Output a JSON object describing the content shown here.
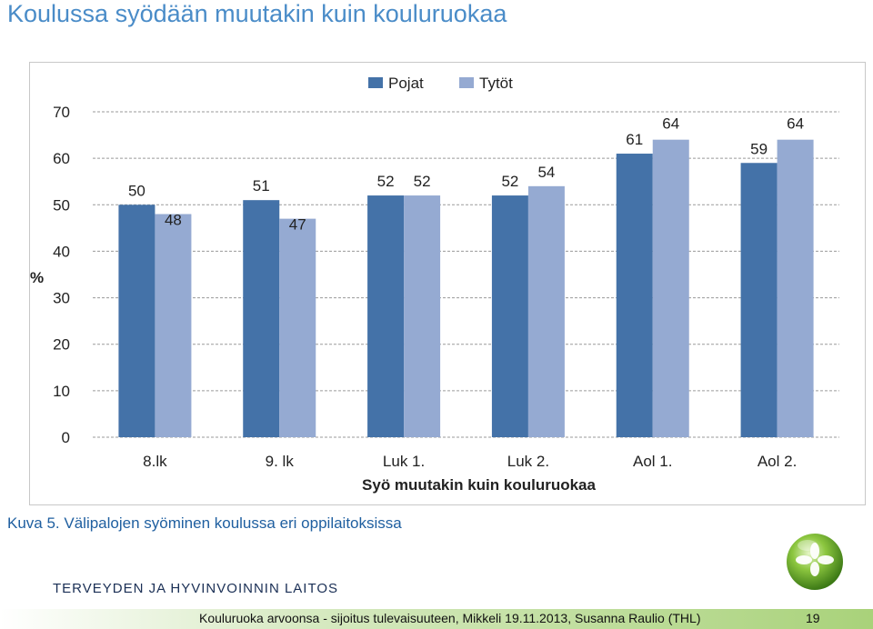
{
  "slide": {
    "title": "Koulussa syödään muutakin kuin kouluruokaa",
    "caption": "Kuva 5. Välipalojen syöminen koulussa eri oppilaitoksissa",
    "organization": "TERVEYDEN JA HYVINVOINNIN LAITOS",
    "footer": "Kouluruoka arvoonsa -  sijoitus tulevaisuuteen, Mikkeli 19.11.2013, Susanna Raulio (THL)",
    "page_number": "19"
  },
  "colors": {
    "title": "#4a8cc8",
    "pojat": "#4472a8",
    "tytot": "#95aad2",
    "caption": "#1f5fa0",
    "footer_green": "#a9d27a"
  },
  "chart_data": {
    "type": "bar",
    "xlabel": "Syö muutakin kuin kouluruokaa",
    "ylabel": "%",
    "ylim": [
      0,
      70
    ],
    "yticks": [
      0,
      10,
      20,
      30,
      40,
      50,
      60,
      70
    ],
    "grid": true,
    "legend_position": "top-right",
    "categories": [
      "8.lk",
      "9. lk",
      "Luk 1.",
      "Luk 2.",
      "Aol 1.",
      "Aol 2."
    ],
    "series": [
      {
        "name": "Pojat",
        "values": [
          50,
          51,
          52,
          52,
          61,
          59
        ]
      },
      {
        "name": "Tytöt",
        "values": [
          48,
          47,
          52,
          54,
          64,
          64
        ]
      }
    ]
  }
}
